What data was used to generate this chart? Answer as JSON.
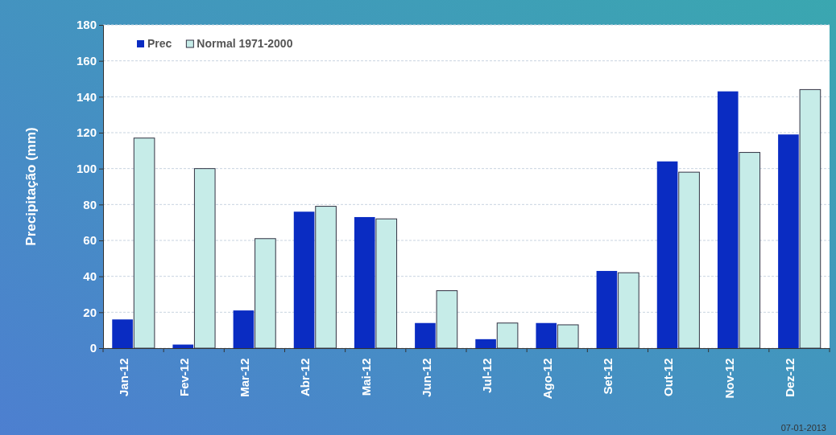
{
  "chart_data": {
    "type": "bar",
    "ylabel": "Precipitação (mm)",
    "categories": [
      "Jan-12",
      "Fev-12",
      "Mar-12",
      "Abr-12",
      "Mai-12",
      "Jun-12",
      "Jul-12",
      "Ago-12",
      "Set-12",
      "Out-12",
      "Nov-12",
      "Dez-12"
    ],
    "series": [
      {
        "name": "Prec",
        "color": "#0a2cc2",
        "values": [
          16,
          2,
          21,
          76,
          73,
          14,
          5,
          14,
          43,
          104,
          143,
          119
        ]
      },
      {
        "name": "Normal 1971-2000",
        "color": "#c6ece8",
        "values": [
          117,
          100,
          61,
          79,
          72,
          32,
          14,
          13,
          42,
          98,
          109,
          144
        ]
      }
    ],
    "ylim": [
      0,
      180
    ],
    "yticks": [
      0,
      20,
      40,
      60,
      80,
      100,
      120,
      140,
      160,
      180
    ],
    "grid": "y",
    "legend": "top left",
    "annotations": [
      "07-01-2013"
    ]
  }
}
